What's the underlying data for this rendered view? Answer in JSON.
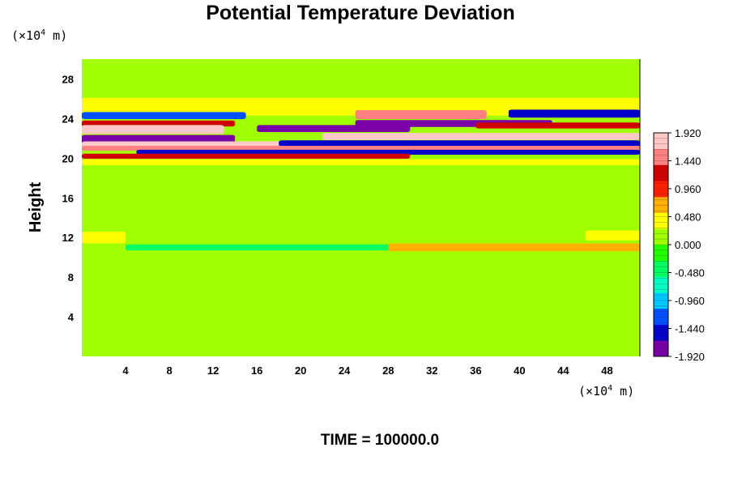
{
  "chart_data": {
    "type": "heatmap",
    "title": "Potential Temperature Deviation",
    "ylabel": "Height",
    "xunit": {
      "prefix": "(×10",
      "exp": "4",
      "suffix": " m)"
    },
    "yunit": {
      "prefix": "(×10",
      "exp": "4",
      "suffix": " m)"
    },
    "xlim": [
      0,
      51
    ],
    "ylim": [
      0,
      30
    ],
    "xticks": [
      4,
      8,
      12,
      16,
      20,
      24,
      28,
      32,
      36,
      40,
      44,
      48
    ],
    "yticks": [
      4,
      8,
      12,
      16,
      20,
      24,
      28
    ],
    "footer": "TIME = 100000.0",
    "colorbar": {
      "min": -1.92,
      "max": 1.92,
      "tick_values": [
        1.92,
        1.44,
        0.96,
        0.48,
        0.0,
        -0.48,
        -0.96,
        -1.44,
        -1.92
      ],
      "tick_labels": [
        "1.920",
        "1.440",
        "0.960",
        "0.480",
        "0.000",
        "-0.480",
        "-0.960",
        "-1.440",
        "-1.920"
      ],
      "colors": [
        "#7a00a8",
        "#0000c8",
        "#0050ff",
        "#00c8ff",
        "#00ffc0",
        "#00ff60",
        "#20ff00",
        "#a0ff00",
        "#ffff00",
        "#ffb000",
        "#ff2000",
        "#d00000",
        "#ff8080",
        "#ffc8c8"
      ]
    },
    "background_value": 0.05,
    "bands": [
      {
        "x0": 0,
        "x1": 51,
        "y_center": 25.2,
        "y_halfwidth": 0.9,
        "value": 0.4
      },
      {
        "x0": 0,
        "x1": 15,
        "y_center": 24.3,
        "y_halfwidth": 0.35,
        "value": -1.1
      },
      {
        "x0": 39,
        "x1": 51,
        "y_center": 24.5,
        "y_halfwidth": 0.4,
        "value": -1.4
      },
      {
        "x0": 25,
        "x1": 37,
        "y_center": 24.4,
        "y_halfwidth": 0.45,
        "value": 1.6
      },
      {
        "x0": 0,
        "x1": 14,
        "y_center": 23.5,
        "y_halfwidth": 0.3,
        "value": 1.2
      },
      {
        "x0": 0,
        "x1": 13,
        "y_center": 22.9,
        "y_halfwidth": 0.45,
        "value": 1.9
      },
      {
        "x0": 16,
        "x1": 30,
        "y_center": 23.0,
        "y_halfwidth": 0.35,
        "value": -1.7
      },
      {
        "x0": 25,
        "x1": 43,
        "y_center": 23.5,
        "y_halfwidth": 0.35,
        "value": -1.9
      },
      {
        "x0": 36,
        "x1": 51,
        "y_center": 23.3,
        "y_halfwidth": 0.3,
        "value": 1.3
      },
      {
        "x0": 22,
        "x1": 51,
        "y_center": 22.2,
        "y_halfwidth": 0.35,
        "value": 1.9
      },
      {
        "x0": 0,
        "x1": 14,
        "y_center": 21.9,
        "y_halfwidth": 0.45,
        "value": -1.9
      },
      {
        "x0": 0,
        "x1": 20,
        "y_center": 21.4,
        "y_halfwidth": 0.3,
        "value": 1.7
      },
      {
        "x0": 18,
        "x1": 51,
        "y_center": 21.5,
        "y_halfwidth": 0.3,
        "value": -1.6
      },
      {
        "x0": 0,
        "x1": 51,
        "y_center": 21.0,
        "y_halfwidth": 0.25,
        "value": 1.5
      },
      {
        "x0": 5,
        "x1": 51,
        "y_center": 20.6,
        "y_halfwidth": 0.25,
        "value": -1.5
      },
      {
        "x0": 0,
        "x1": 30,
        "y_center": 20.2,
        "y_halfwidth": 0.25,
        "value": 1.3
      },
      {
        "x0": 0,
        "x1": 51,
        "y_center": 19.6,
        "y_halfwidth": 0.3,
        "value": 0.45
      },
      {
        "x0": 0,
        "x1": 4,
        "y_center": 12.0,
        "y_halfwidth": 0.6,
        "value": 0.5
      },
      {
        "x0": 4,
        "x1": 36,
        "y_center": 11.0,
        "y_halfwidth": 0.3,
        "value": -0.3
      },
      {
        "x0": 28,
        "x1": 51,
        "y_center": 11.0,
        "y_halfwidth": 0.4,
        "value": 0.55
      },
      {
        "x0": 46,
        "x1": 51,
        "y_center": 12.2,
        "y_halfwidth": 0.5,
        "value": 0.45
      }
    ]
  }
}
